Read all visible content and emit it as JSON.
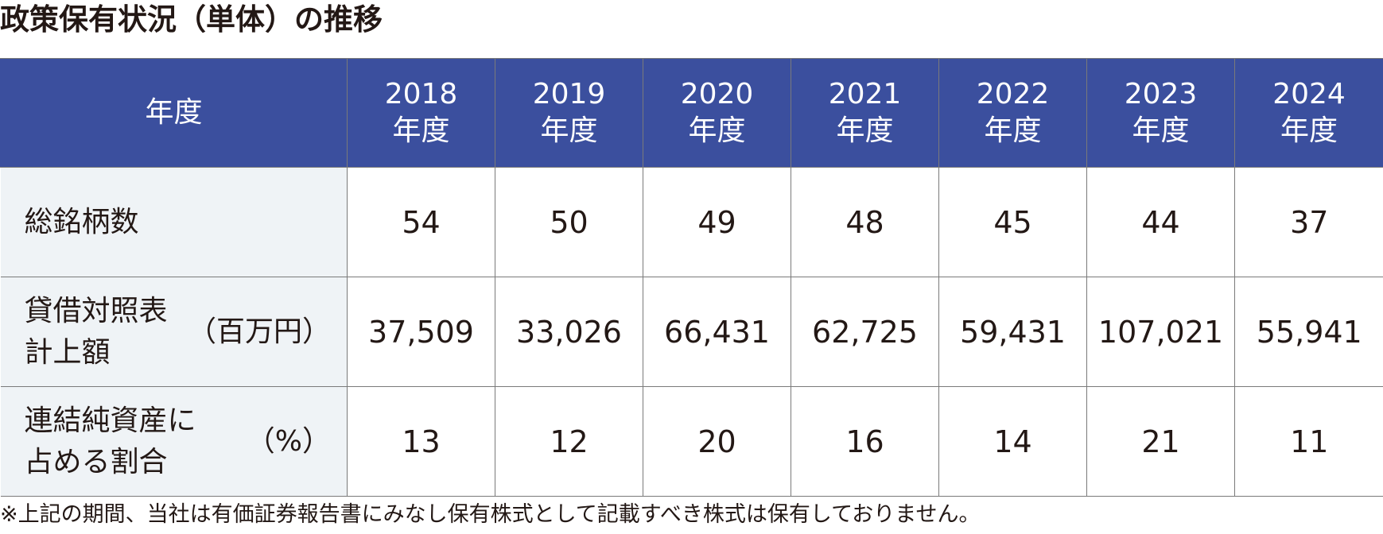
{
  "title": "政策保有状況（単体）の推移",
  "table": {
    "header_label": "年度",
    "columns": [
      {
        "year": "2018",
        "suffix": "年度"
      },
      {
        "year": "2019",
        "suffix": "年度"
      },
      {
        "year": "2020",
        "suffix": "年度"
      },
      {
        "year": "2021",
        "suffix": "年度"
      },
      {
        "year": "2022",
        "suffix": "年度"
      },
      {
        "year": "2023",
        "suffix": "年度"
      },
      {
        "year": "2024",
        "suffix": "年度"
      }
    ],
    "rows": [
      {
        "label_lines": [
          "総銘柄数"
        ],
        "unit": "",
        "values": [
          "54",
          "50",
          "49",
          "48",
          "45",
          "44",
          "37"
        ]
      },
      {
        "label_lines": [
          "貸借対照表",
          "計上額"
        ],
        "unit": "（百万円）",
        "values": [
          "37,509",
          "33,026",
          "66,431",
          "62,725",
          "59,431",
          "107,021",
          "55,941"
        ]
      },
      {
        "label_lines": [
          "連結純資産に",
          "占める割合"
        ],
        "unit": "（%）",
        "values": [
          "13",
          "12",
          "20",
          "16",
          "14",
          "21",
          "11"
        ]
      }
    ]
  },
  "footnote": "※上記の期間、当社は有価証券報告書にみなし保有株式として記載すべき株式は保有しておりません。",
  "colors": {
    "header_bg": "#3b4f9e",
    "label_bg": "#eff3f6",
    "border": "#7a7a7a"
  }
}
